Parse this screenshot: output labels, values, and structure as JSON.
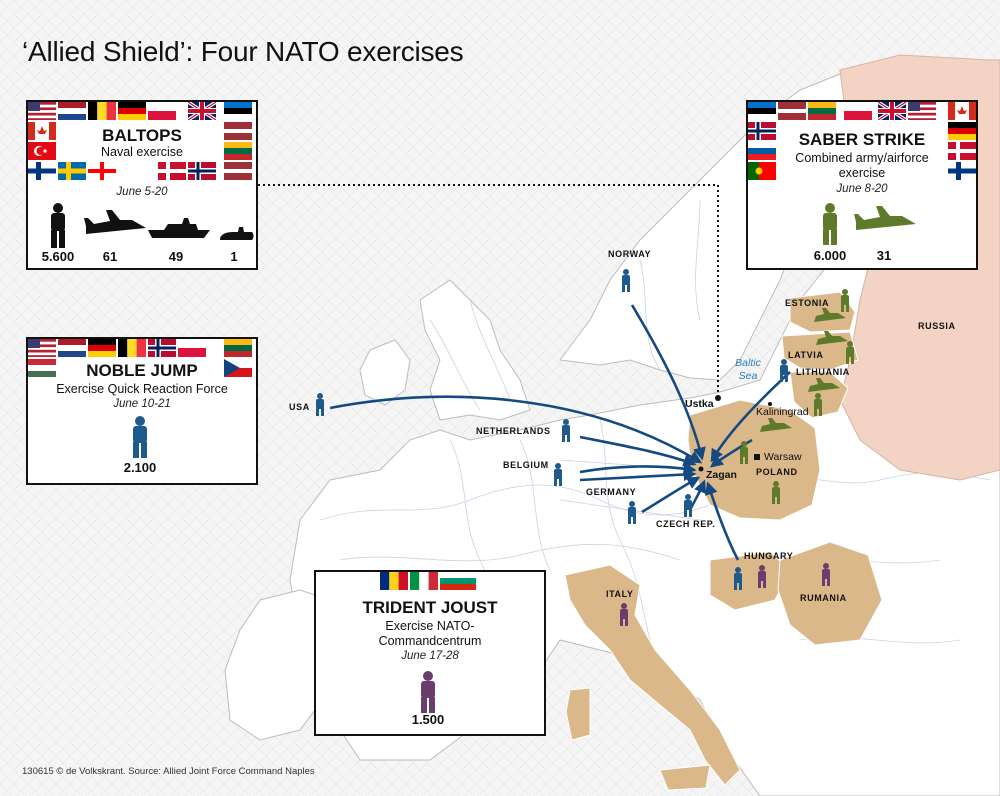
{
  "title": "‘Allied Shield’: Four NATO exercises",
  "footer": "130615 © de Volkskrant. Source: Allied Joint Force Command Naples",
  "colors": {
    "nato_blue": "#1f5a8c",
    "saber_green": "#5f7a2b",
    "trident_purple": "#6b3d6e",
    "participant_land": "#dbb88a",
    "russia_land": "#f2d3c4",
    "sea": "#f5f5f5",
    "arrow": "#144a80"
  },
  "exercises": {
    "baltops": {
      "name": "BALTOPS",
      "description": "Naval exercise",
      "dates": "June 5-20",
      "stats": [
        {
          "icon": "soldier-icon",
          "value": "5.600"
        },
        {
          "icon": "fighter-jet-icon",
          "value": "61"
        },
        {
          "icon": "warship-icon",
          "value": "49"
        },
        {
          "icon": "submarine-icon",
          "value": "1"
        }
      ]
    },
    "saber_strike": {
      "name": "SABER STRIKE",
      "description_lines": [
        "Combined army/airforce",
        "exercise"
      ],
      "dates": "June 8-20",
      "stats": [
        {
          "icon": "soldier-icon",
          "value": "6.000"
        },
        {
          "icon": "fighter-jet-icon",
          "value": "31"
        }
      ]
    },
    "noble_jump": {
      "name": "NOBLE JUMP",
      "description": "Exercise Quick Reaction Force",
      "dates": "June 10-21",
      "stats": [
        {
          "icon": "soldier-icon",
          "value": "2.100"
        }
      ]
    },
    "trident_joust": {
      "name": "TRIDENT JOUST",
      "description_lines": [
        "Exercise NATO-",
        "Commandcentrum"
      ],
      "dates": "June 17-28",
      "stats": [
        {
          "icon": "soldier-icon",
          "value": "1.500"
        }
      ]
    }
  },
  "map_labels": {
    "countries": [
      "NORWAY",
      "ESTONIA",
      "RUSSIA",
      "LATVIA",
      "LITHUANIA",
      "USA",
      "NETHERLANDS",
      "BELGIUM",
      "GERMANY",
      "CZECH REP.",
      "POLAND",
      "HUNGARY",
      "RUMANIA",
      "ITALY"
    ],
    "cities": [
      "Ustka",
      "Kaliningrad",
      "Warsaw",
      "Zagan"
    ],
    "sea": [
      "Baltic",
      "Sea"
    ]
  }
}
